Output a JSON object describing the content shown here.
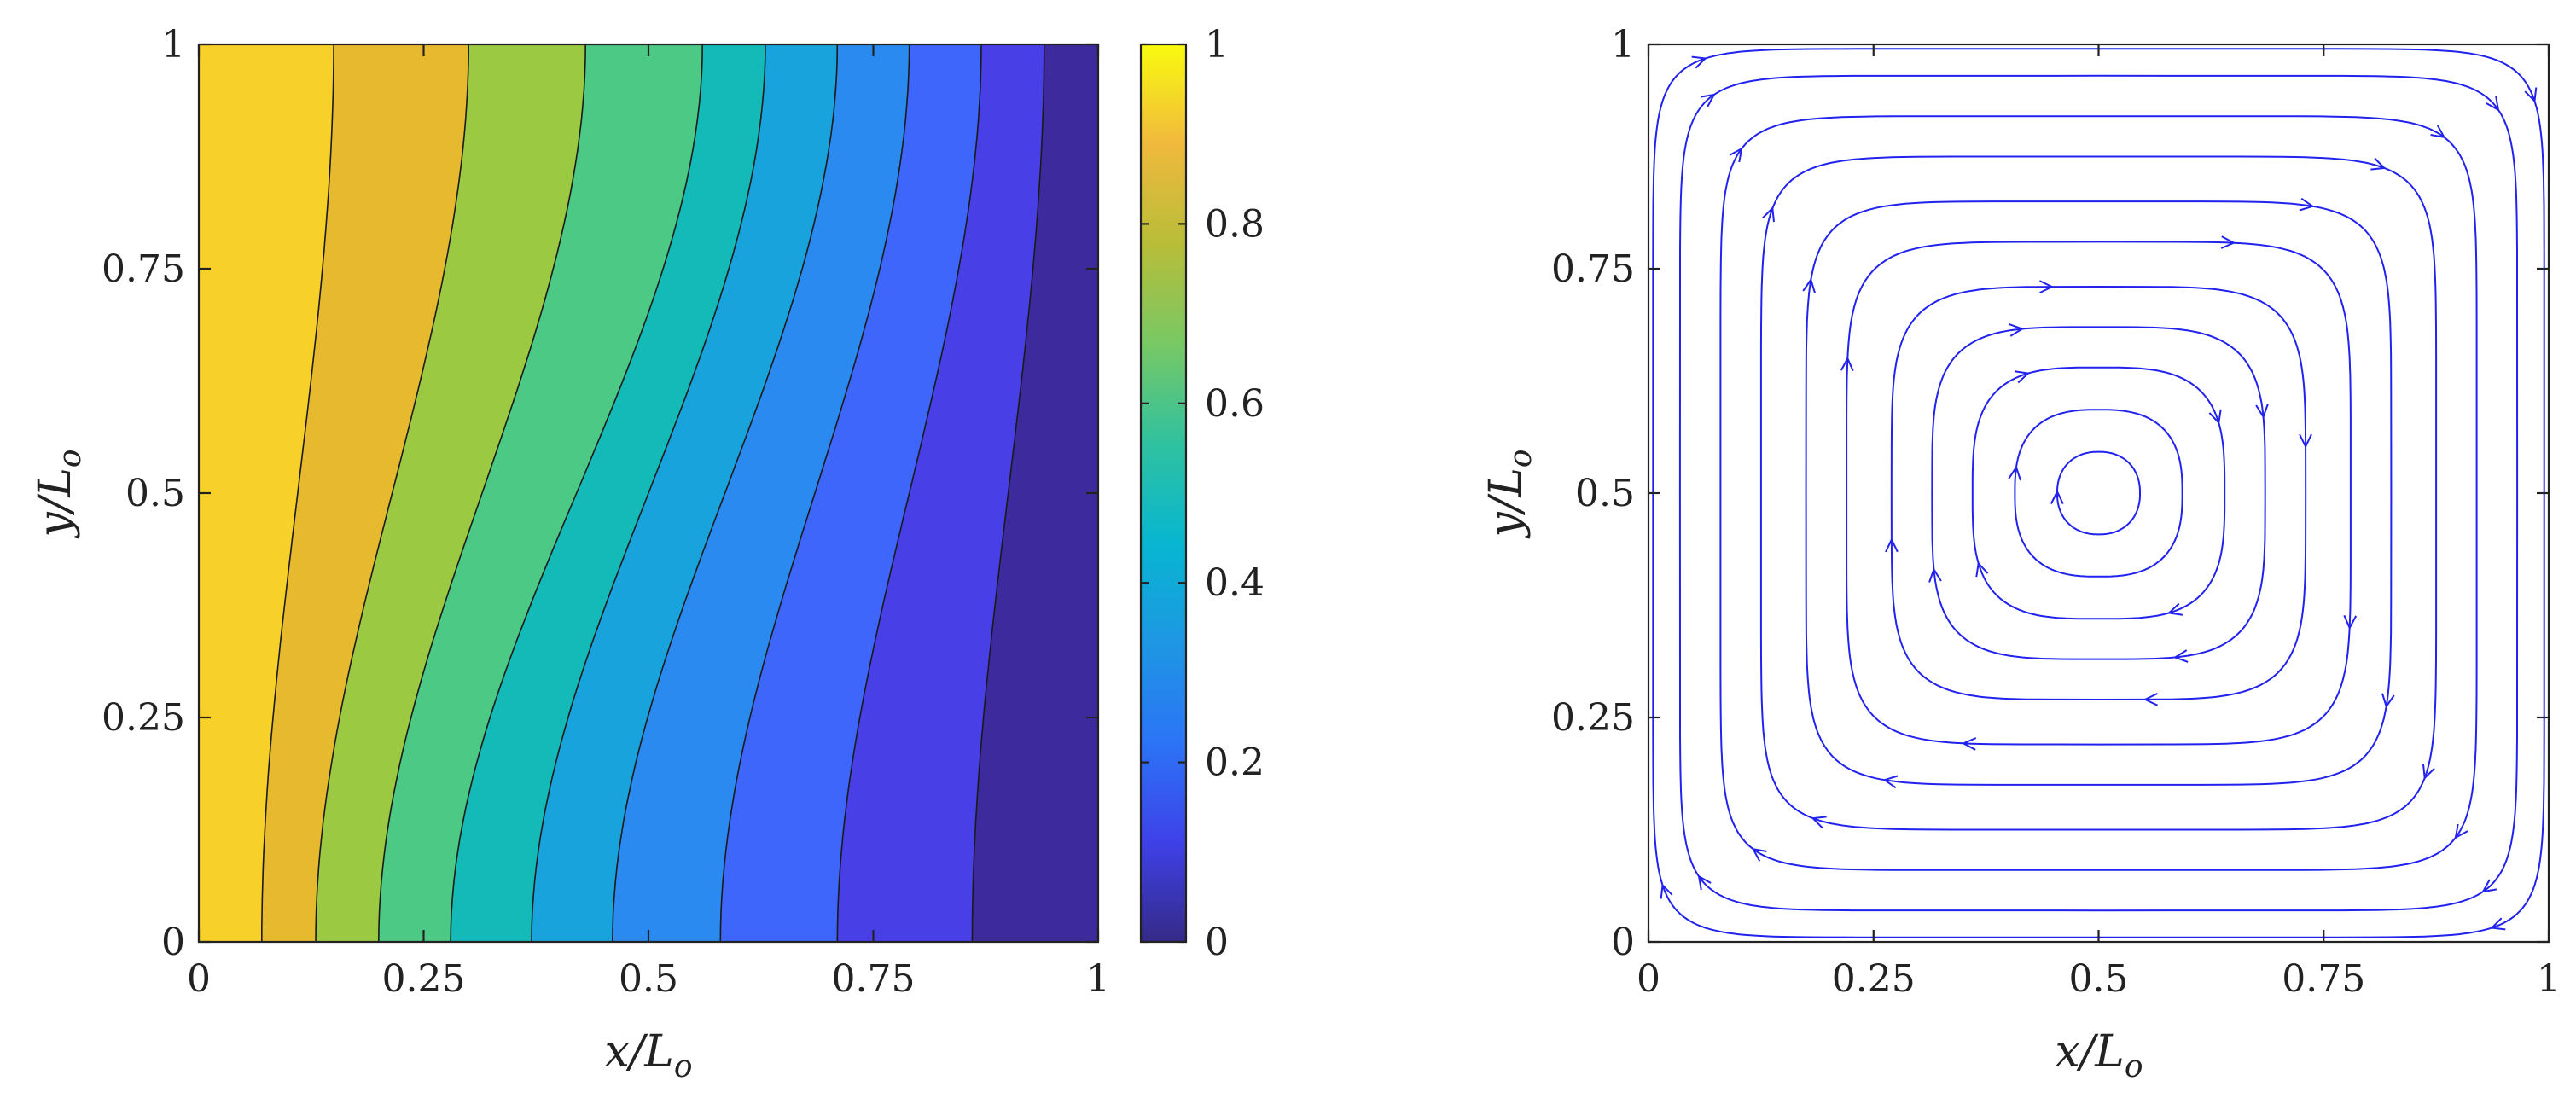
{
  "chart_data": [
    {
      "type": "heatmap",
      "subtype": "filled-contour",
      "title": "",
      "xlabel": "x/Lo",
      "ylabel": "y/Lo",
      "xlabel_parts": {
        "main": "x/L",
        "sub": "o"
      },
      "ylabel_parts": {
        "main": "y/L",
        "sub": "o"
      },
      "xlim": [
        0,
        1
      ],
      "ylim": [
        0,
        1
      ],
      "xticks": [
        0,
        0.25,
        0.5,
        0.75,
        1
      ],
      "xtick_labels": [
        "0",
        "0.25",
        "0.5",
        "0.75",
        "1"
      ],
      "yticks": [
        0,
        0.25,
        0.5,
        0.75,
        1
      ],
      "ytick_labels": [
        "0",
        "0.25",
        "0.5",
        "0.75",
        "1"
      ],
      "colormap": "parula",
      "contour_levels": [
        0.1,
        0.2,
        0.3,
        0.4,
        0.5,
        0.6,
        0.7,
        0.8,
        0.9
      ],
      "isoline_x_at_y0": [
        0.86,
        0.71,
        0.58,
        0.46,
        0.37,
        0.28,
        0.2,
        0.13,
        0.07
      ],
      "isoline_x_at_y1": [
        0.94,
        0.87,
        0.79,
        0.71,
        0.63,
        0.56,
        0.43,
        0.3,
        0.15
      ],
      "band_colors": [
        "#3d2b9e",
        "#4840e6",
        "#3e66fb",
        "#2b8aef",
        "#19a3dc",
        "#13bab7",
        "#4cc985",
        "#9cc942",
        "#e6b92f",
        "#f8d02a"
      ],
      "colorbar": {
        "lim": [
          0,
          1
        ],
        "ticks": [
          0,
          0.2,
          0.4,
          0.6,
          0.8,
          1
        ],
        "tick_labels": [
          "0",
          "0.2",
          "0.4",
          "0.6",
          "0.8",
          "1"
        ],
        "stops": [
          "#352a87",
          "#3e41e8",
          "#2b74f6",
          "#1e97e3",
          "#07b6d0",
          "#30c19f",
          "#78c864",
          "#b8bd38",
          "#f0b93d",
          "#f9fb0e"
        ]
      },
      "grid": false
    },
    {
      "type": "streamline",
      "title": "",
      "xlabel": "x/Lo",
      "ylabel": "y/Lo",
      "xlabel_parts": {
        "main": "x/L",
        "sub": "o"
      },
      "ylabel_parts": {
        "main": "y/L",
        "sub": "o"
      },
      "xlim": [
        0,
        1
      ],
      "ylim": [
        0,
        1
      ],
      "xticks": [
        0,
        0.25,
        0.5,
        0.75,
        1
      ],
      "xtick_labels": [
        "0",
        "0.25",
        "0.5",
        "0.75",
        "1"
      ],
      "yticks": [
        0,
        0.25,
        0.5,
        0.75,
        1
      ],
      "ytick_labels": [
        "0",
        "0.25",
        "0.5",
        "0.75",
        "1"
      ],
      "vortex_center": [
        0.5,
        0.5
      ],
      "rotation": "clockwise",
      "streamline_half_widths": [
        0.046,
        0.093,
        0.14,
        0.185,
        0.23,
        0.28,
        0.325,
        0.375,
        0.42,
        0.465,
        0.495
      ],
      "line_color": "#2222ee",
      "grid": false
    }
  ]
}
